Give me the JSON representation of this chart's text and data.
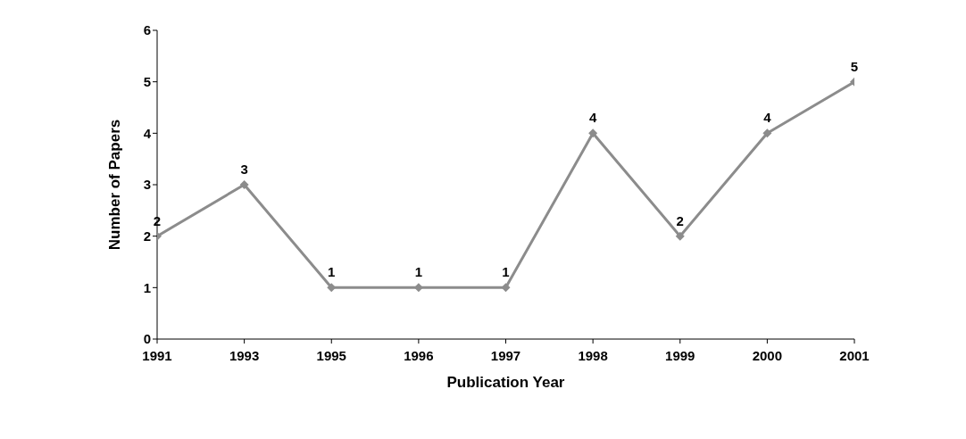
{
  "chart_data": {
    "type": "line",
    "xlabel": "Publication Year",
    "ylabel": "Number of Papers",
    "categories": [
      "1991",
      "1993",
      "1995",
      "1996",
      "1997",
      "1998",
      "1999",
      "2000",
      "2001"
    ],
    "series": [
      {
        "color": "#8c8c8c",
        "values": [
          2,
          3,
          1,
          1,
          1,
          4,
          2,
          4,
          5
        ]
      }
    ],
    "ylim": [
      0,
      6
    ],
    "yticks": [
      0,
      1,
      2,
      3,
      4,
      5,
      6
    ],
    "grid": false,
    "legend": false,
    "marker": "diamond",
    "line_style": "solid",
    "data_labels": true
  }
}
